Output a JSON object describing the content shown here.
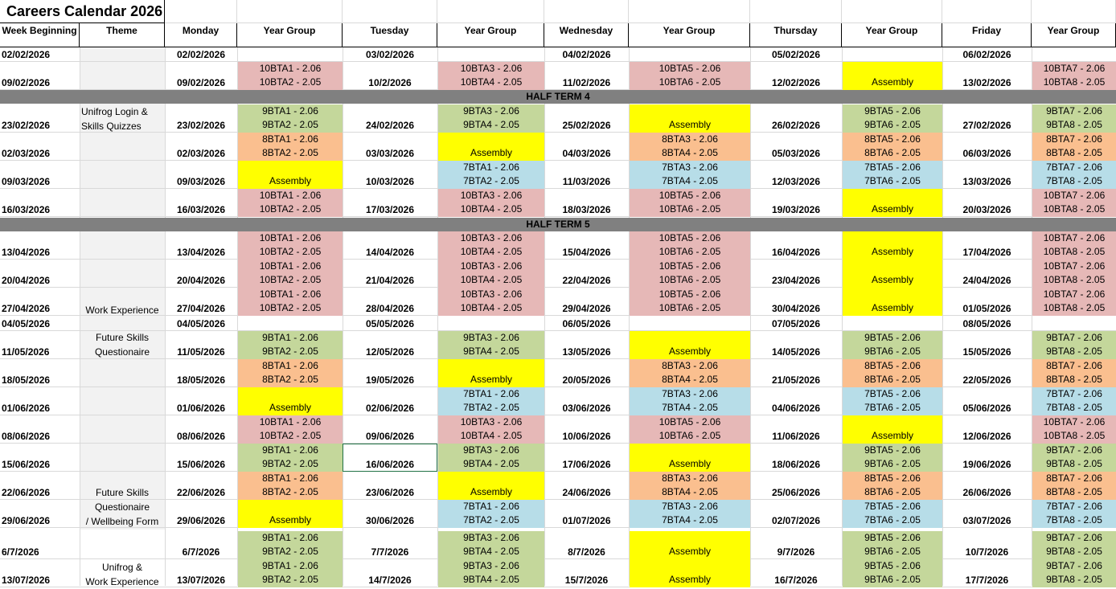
{
  "title": "Careers Calendar 2026",
  "headers": [
    "Week Beginning",
    "Theme",
    "Monday",
    "Year Group",
    "Tuesday",
    "Year Group",
    "Wednesday",
    "Year Group",
    "Thursday",
    "Year Group",
    "Friday",
    "Year Group"
  ],
  "half_terms": [
    "HALF TERM 4",
    "HALF TERM 5"
  ],
  "themes": [
    "Unifrog Login &\nSkills Quizzes",
    "Work Experience",
    "Future Skills\nQuestionaire",
    "Future Skills\nQuestionaire\n/ Wellbeing Form",
    "Unifrog &\nWork Experience"
  ],
  "rows": [
    {
      "wk": "02/02/2026",
      "mon": "02/02/2026",
      "tue": "03/02/2026",
      "wed": "04/02/2026",
      "thu": "05/02/2026",
      "fri": "06/02/2026",
      "g": [
        null,
        null,
        null,
        null,
        null
      ]
    },
    {
      "wk": "09/02/2026",
      "mon": "09/02/2026",
      "tue": "10/2/2026",
      "wed": "11/02/2026",
      "thu": "12/02/2026",
      "fri": "13/02/2026",
      "g": [
        [
          "pink",
          "10BTA1 - 2.06",
          "10BTA2 - 2.05"
        ],
        [
          "pink",
          "10BTA3 - 2.06",
          "10BTA4 - 2.05"
        ],
        [
          "pink",
          "10BTA5 - 2.06",
          "10BTA6 - 2.05"
        ],
        [
          "yellow",
          "",
          "Assembly"
        ],
        [
          "pink",
          "10BTA7 - 2.06",
          "10BTA8 - 2.05"
        ]
      ]
    },
    {
      "wk": "23/02/2026",
      "mon": "23/02/2026",
      "tue": "24/02/2026",
      "wed": "25/02/2026",
      "thu": "26/02/2026",
      "fri": "27/02/2026",
      "g": [
        [
          "green",
          "9BTA1 - 2.06",
          "9BTA2 - 2.05"
        ],
        [
          "green",
          "9BTA3 - 2.06",
          "9BTA4 - 2.05"
        ],
        [
          "yellow",
          "",
          "Assembly"
        ],
        [
          "green",
          "9BTA5 - 2.06",
          "9BTA6 - 2.05"
        ],
        [
          "green",
          "9BTA7 - 2.06",
          "9BTA8 - 2.05"
        ]
      ]
    },
    {
      "wk": "02/03/2026",
      "mon": "02/03/2026",
      "tue": "03/03/2026",
      "wed": "04/03/2026",
      "thu": "05/03/2026",
      "fri": "06/03/2026",
      "g": [
        [
          "orange",
          "8BTA1 - 2.06",
          "8BTA2 - 2.05"
        ],
        [
          "yellow",
          "",
          "Assembly"
        ],
        [
          "orange",
          "8BTA3 - 2.06",
          "8BTA4 - 2.05"
        ],
        [
          "orange",
          "8BTA5 - 2.06",
          "8BTA6 - 2.05"
        ],
        [
          "orange",
          "8BTA7 - 2.06",
          "8BTA8 - 2.05"
        ]
      ]
    },
    {
      "wk": "09/03/2026",
      "mon": "09/03/2026",
      "tue": "10/03/2026",
      "wed": "11/03/2026",
      "thu": "12/03/2026",
      "fri": "13/03/2026",
      "g": [
        [
          "yellow",
          "",
          "Assembly"
        ],
        [
          "blue",
          "7BTA1 - 2.06",
          "7BTA2 - 2.05"
        ],
        [
          "blue",
          "7BTA3 - 2.06",
          "7BTA4 - 2.05"
        ],
        [
          "blue",
          "7BTA5 - 2.06",
          "7BTA6 - 2.05"
        ],
        [
          "blue",
          "7BTA7 - 2.06",
          "7BTA8 - 2.05"
        ]
      ]
    },
    {
      "wk": "16/03/2026",
      "mon": "16/03/2026",
      "tue": "17/03/2026",
      "wed": "18/03/2026",
      "thu": "19/03/2026",
      "fri": "20/03/2026",
      "g": [
        [
          "pink",
          "10BTA1 - 2.06",
          "10BTA2 - 2.05"
        ],
        [
          "pink",
          "10BTA3 - 2.06",
          "10BTA4 - 2.05"
        ],
        [
          "pink",
          "10BTA5 - 2.06",
          "10BTA6 - 2.05"
        ],
        [
          "yellow",
          "",
          "Assembly"
        ],
        [
          "pink",
          "10BTA7 - 2.06",
          "10BTA8 - 2.05"
        ]
      ]
    },
    {
      "wk": "13/04/2026",
      "mon": "13/04/2026",
      "tue": "14/04/2026",
      "wed": "15/04/2026",
      "thu": "16/04/2026",
      "fri": "17/04/2026",
      "g": [
        [
          "pink",
          "10BTA1 - 2.06",
          "10BTA2 - 2.05"
        ],
        [
          "pink",
          "10BTA3 - 2.06",
          "10BTA4 - 2.05"
        ],
        [
          "pink",
          "10BTA5 - 2.06",
          "10BTA6 - 2.05"
        ],
        [
          "yellow",
          "",
          "Assembly"
        ],
        [
          "pink",
          "10BTA7 - 2.06",
          "10BTA8 - 2.05"
        ]
      ]
    },
    {
      "wk": "20/04/2026",
      "mon": "20/04/2026",
      "tue": "21/04/2026",
      "wed": "22/04/2026",
      "thu": "23/04/2026",
      "fri": "24/04/2026",
      "g": [
        [
          "pink",
          "10BTA1 - 2.06",
          "10BTA2 - 2.05"
        ],
        [
          "pink",
          "10BTA3 - 2.06",
          "10BTA4 - 2.05"
        ],
        [
          "pink",
          "10BTA5 - 2.06",
          "10BTA6 - 2.05"
        ],
        [
          "yellow",
          "",
          "Assembly"
        ],
        [
          "pink",
          "10BTA7 - 2.06",
          "10BTA8 - 2.05"
        ]
      ]
    },
    {
      "wk": "27/04/2026",
      "mon": "27/04/2026",
      "tue": "28/04/2026",
      "wed": "29/04/2026",
      "thu": "30/04/2026",
      "fri": "01/05/2026",
      "g": [
        [
          "pink",
          "10BTA1 - 2.06",
          "10BTA2 - 2.05"
        ],
        [
          "pink",
          "10BTA3 - 2.06",
          "10BTA4 - 2.05"
        ],
        [
          "pink",
          "10BTA5 - 2.06",
          "10BTA6 - 2.05"
        ],
        [
          "yellow",
          "",
          "Assembly"
        ],
        [
          "pink",
          "10BTA7 - 2.06",
          "10BTA8 - 2.05"
        ]
      ]
    },
    {
      "wk": "04/05/2026",
      "mon": "04/05/2026",
      "tue": "05/05/2026",
      "wed": "06/05/2026",
      "thu": "07/05/2026",
      "fri": "08/05/2026",
      "g": [
        null,
        null,
        null,
        null,
        null
      ]
    },
    {
      "wk": "11/05/2026",
      "mon": "11/05/2026",
      "tue": "12/05/2026",
      "wed": "13/05/2026",
      "thu": "14/05/2026",
      "fri": "15/05/2026",
      "g": [
        [
          "green",
          "9BTA1 - 2.06",
          "9BTA2 - 2.05"
        ],
        [
          "green",
          "9BTA3 - 2.06",
          "9BTA4 - 2.05"
        ],
        [
          "yellow",
          "",
          "Assembly"
        ],
        [
          "green",
          "9BTA5 - 2.06",
          "9BTA6 - 2.05"
        ],
        [
          "green",
          "9BTA7 - 2.06",
          "9BTA8 - 2.05"
        ]
      ]
    },
    {
      "wk": "18/05/2026",
      "mon": "18/05/2026",
      "tue": "19/05/2026",
      "wed": "20/05/2026",
      "thu": "21/05/2026",
      "fri": "22/05/2026",
      "g": [
        [
          "orange",
          "8BTA1 - 2.06",
          "8BTA2 - 2.05"
        ],
        [
          "yellow",
          "",
          "Assembly"
        ],
        [
          "orange",
          "8BTA3 - 2.06",
          "8BTA4 - 2.05"
        ],
        [
          "orange",
          "8BTA5 - 2.06",
          "8BTA6 - 2.05"
        ],
        [
          "orange",
          "8BTA7 - 2.06",
          "8BTA8 - 2.05"
        ]
      ]
    },
    {
      "wk": "01/06/2026",
      "mon": "01/06/2026",
      "tue": "02/06/2026",
      "wed": "03/06/2026",
      "thu": "04/06/2026",
      "fri": "05/06/2026",
      "g": [
        [
          "yellow",
          "",
          "Assembly"
        ],
        [
          "blue",
          "7BTA1 - 2.06",
          "7BTA2 - 2.05"
        ],
        [
          "blue",
          "7BTA3 - 2.06",
          "7BTA4 - 2.05"
        ],
        [
          "blue",
          "7BTA5 - 2.06",
          "7BTA6 - 2.05"
        ],
        [
          "blue",
          "7BTA7 - 2.06",
          "7BTA8 - 2.05"
        ]
      ]
    },
    {
      "wk": "08/06/2026",
      "mon": "08/06/2026",
      "tue": "09/06/2026",
      "wed": "10/06/2026",
      "thu": "11/06/2026",
      "fri": "12/06/2026",
      "g": [
        [
          "pink",
          "10BTA1 - 2.06",
          "10BTA2 - 2.05"
        ],
        [
          "pink",
          "10BTA3 - 2.06",
          "10BTA4 - 2.05"
        ],
        [
          "pink",
          "10BTA5 - 2.06",
          "10BTA6 - 2.05"
        ],
        [
          "yellow",
          "",
          "Assembly"
        ],
        [
          "pink",
          "10BTA7 - 2.06",
          "10BTA8 - 2.05"
        ]
      ]
    },
    {
      "wk": "15/06/2026",
      "mon": "15/06/2026",
      "tue": "16/06/2026",
      "wed": "17/06/2026",
      "thu": "18/06/2026",
      "fri": "19/06/2026",
      "g": [
        [
          "green",
          "9BTA1 - 2.06",
          "9BTA2 - 2.05"
        ],
        [
          "green",
          "9BTA3 - 2.06",
          "9BTA4 - 2.05"
        ],
        [
          "yellow",
          "",
          "Assembly"
        ],
        [
          "green",
          "9BTA5 - 2.06",
          "9BTA6 - 2.05"
        ],
        [
          "green",
          "9BTA7 - 2.06",
          "9BTA8 - 2.05"
        ]
      ]
    },
    {
      "wk": "22/06/2026",
      "mon": "22/06/2026",
      "tue": "23/06/2026",
      "wed": "24/06/2026",
      "thu": "25/06/2026",
      "fri": "26/06/2026",
      "g": [
        [
          "orange",
          "8BTA1 - 2.06",
          "8BTA2 - 2.05"
        ],
        [
          "yellow",
          "",
          "Assembly"
        ],
        [
          "orange",
          "8BTA3 - 2.06",
          "8BTA4 - 2.05"
        ],
        [
          "orange",
          "8BTA5 - 2.06",
          "8BTA6 - 2.05"
        ],
        [
          "orange",
          "8BTA7 - 2.06",
          "8BTA8 - 2.05"
        ]
      ]
    },
    {
      "wk": "29/06/2026",
      "mon": "29/06/2026",
      "tue": "30/06/2026",
      "wed": "01/07/2026",
      "thu": "02/07/2026",
      "fri": "03/07/2026",
      "g": [
        [
          "yellow",
          "",
          "Assembly"
        ],
        [
          "blue",
          "7BTA1 - 2.06",
          "7BTA2 - 2.05"
        ],
        [
          "blue",
          "7BTA3 - 2.06",
          "7BTA4 - 2.05"
        ],
        [
          "blue",
          "7BTA5 - 2.06",
          "7BTA6 - 2.05"
        ],
        [
          "blue",
          "7BTA7 - 2.06",
          "7BTA8 - 2.05"
        ]
      ]
    },
    {
      "wk": "6/7/2026",
      "mon": "6/7/2026",
      "tue": "7/7/2026",
      "wed": "8/7/2026",
      "thu": "9/7/2026",
      "fri": "10/7/2026",
      "g": [
        [
          "green",
          "9BTA1 - 2.06",
          "9BTA2 - 2.05"
        ],
        [
          "green",
          "9BTA3 - 2.06",
          "9BTA4 - 2.05"
        ],
        [
          "yellow",
          "",
          "Assembly"
        ],
        [
          "green",
          "9BTA5 - 2.06",
          "9BTA6 - 2.05"
        ],
        [
          "green",
          "9BTA7 - 2.06",
          "9BTA8 - 2.05"
        ]
      ]
    },
    {
      "wk": "13/07/2026",
      "mon": "13/07/2026",
      "tue": "14/7/2026",
      "wed": "15/7/2026",
      "thu": "16/7/2026",
      "fri": "17/7/2026",
      "g": [
        [
          "green",
          "9BTA1 - 2.06",
          "9BTA2 - 2.05"
        ],
        [
          "green",
          "9BTA3 - 2.06",
          "9BTA4 - 2.05"
        ],
        [
          "yellow",
          "",
          "Assembly"
        ],
        [
          "green",
          "9BTA5 - 2.06",
          "9BTA6 - 2.05"
        ],
        [
          "green",
          "9BTA7 - 2.06",
          "9BTA8 - 2.05"
        ]
      ]
    }
  ]
}
